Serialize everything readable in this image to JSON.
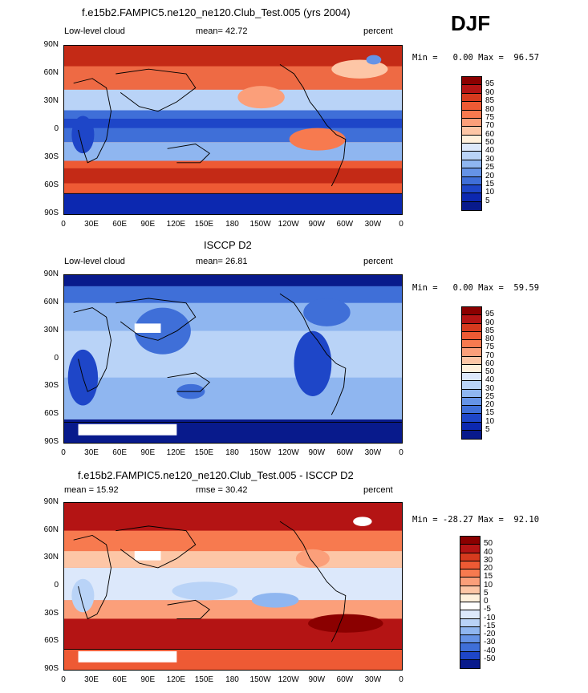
{
  "season": "DJF",
  "panels": [
    {
      "title": "f.e15b2.FAMPIC5.ne120_ne120.Club_Test.005 (yrs 2004)",
      "left_label": "Low-level cloud",
      "mid_label": "mean=  42.72",
      "right_label": "percent",
      "stats": "Min =   0.00 Max =  96.57",
      "kind": "model"
    },
    {
      "title": "ISCCP D2",
      "left_label": "Low-level cloud",
      "mid_label": "mean=  26.81",
      "right_label": "percent",
      "stats": "Min =   0.00 Max =  59.59",
      "kind": "obs"
    },
    {
      "title": "f.e15b2.FAMPIC5.ne120_ne120.Club_Test.005 - ISCCP D2",
      "left_label": "mean =  15.92",
      "mid_label": "rmse =  30.42",
      "right_label": "percent",
      "stats": "Min = -28.27 Max =  92.10",
      "kind": "diff"
    }
  ],
  "lat_ticks": [
    "90N",
    "60N",
    "30N",
    "0",
    "30S",
    "60S",
    "90S"
  ],
  "lon_ticks": [
    "0",
    "30E",
    "60E",
    "90E",
    "120E",
    "150E",
    "180",
    "150W",
    "120W",
    "90W",
    "60W",
    "30W",
    "0"
  ],
  "colorbar_abs": {
    "labels": [
      "95",
      "90",
      "85",
      "80",
      "75",
      "70",
      "60",
      "50",
      "40",
      "30",
      "25",
      "20",
      "15",
      "10",
      "5"
    ],
    "colors": [
      "#8b0000",
      "#b41414",
      "#d63a1e",
      "#ee5a34",
      "#f77a4f",
      "#fb9f7a",
      "#fdc6a6",
      "#fff0dc",
      "#dce8fb",
      "#b9d3f7",
      "#8fb6f0",
      "#6593e6",
      "#3f6fd8",
      "#1e46c8",
      "#0c28b0",
      "#081a8c"
    ]
  },
  "colorbar_diff": {
    "labels": [
      "50",
      "40",
      "30",
      "20",
      "15",
      "10",
      "5",
      "0",
      "-5",
      "-10",
      "-15",
      "-20",
      "-30",
      "-40",
      "-50"
    ],
    "colors": [
      "#8b0000",
      "#b41414",
      "#d63a1e",
      "#ee5a34",
      "#f77a4f",
      "#fb9f7a",
      "#fdc6a6",
      "#fff0dc",
      "#ffffff",
      "#dce8fb",
      "#b9d3f7",
      "#8fb6f0",
      "#6593e6",
      "#3f6fd8",
      "#1e46c8",
      "#081a8c"
    ]
  }
}
